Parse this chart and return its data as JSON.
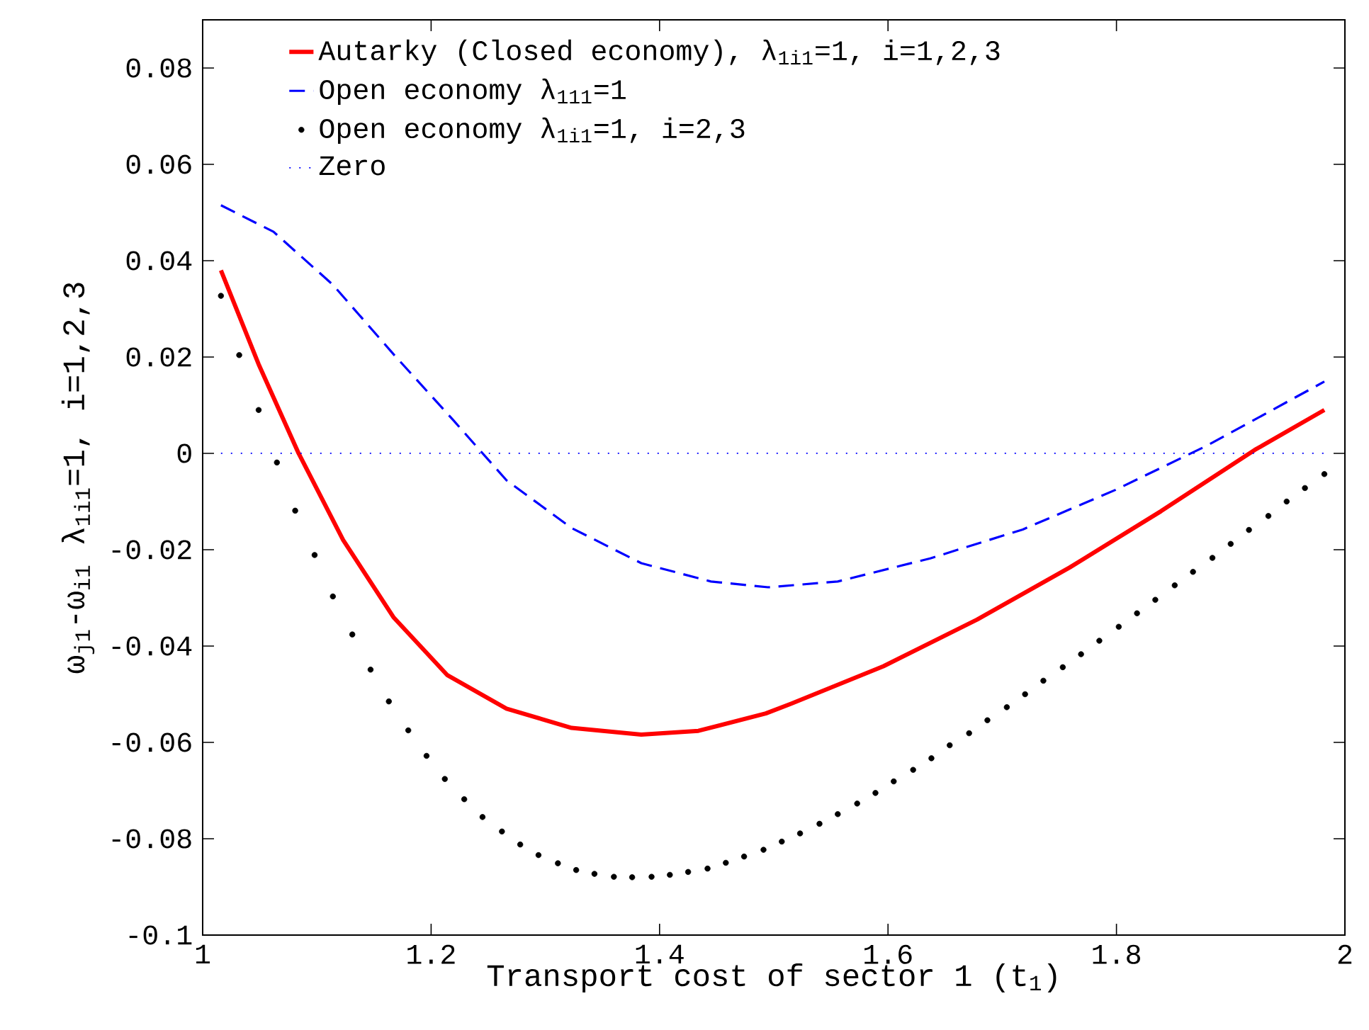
{
  "chart_data": {
    "type": "line",
    "xlabel": "Transport cost of sector 1 (t$_{1}$)",
    "ylabel": "ω$_{j1}$-ω$_{i1}$  λ$_{1i1}$=1, i=1,2,3",
    "xlim": [
      1,
      2
    ],
    "ylim": [
      -0.1,
      0.09
    ],
    "xticks": [
      1,
      1.2,
      1.4,
      1.6,
      1.8,
      2
    ],
    "yticks": [
      -0.1,
      -0.08,
      -0.06,
      -0.04,
      -0.02,
      0,
      0.02,
      0.04,
      0.06,
      0.08
    ],
    "legend": "top left",
    "series": [
      {
        "name": "Autarky (Closed economy), λ$_{1i1}$=1, i=1,2,3",
        "type": "line",
        "color": "#ff0000",
        "line_style": "solid",
        "marker": "none",
        "x": [
          1.016,
          1.049,
          1.084,
          1.123,
          1.167,
          1.214,
          1.266,
          1.323,
          1.384,
          1.434,
          1.493,
          1.515,
          1.596,
          1.678,
          1.759,
          1.839,
          1.921,
          1.982
        ],
        "values": [
          0.038,
          0.0185,
          0.0,
          -0.018,
          -0.034,
          -0.046,
          -0.053,
          -0.057,
          -0.0584,
          -0.0576,
          -0.054,
          -0.052,
          -0.0442,
          -0.0345,
          -0.0237,
          -0.012,
          0.0007,
          0.009
        ]
      },
      {
        "name": "Open economy λ$_{111}$=1",
        "type": "line",
        "color": "#0000ff",
        "line_style": "dashed",
        "marker": "none",
        "x": [
          1.016,
          1.062,
          1.114,
          1.167,
          1.219,
          1.266,
          1.323,
          1.384,
          1.445,
          1.495,
          1.556,
          1.637,
          1.718,
          1.799,
          1.88,
          1.982
        ],
        "values": [
          0.0515,
          0.046,
          0.035,
          0.0206,
          0.007,
          -0.0056,
          -0.0155,
          -0.0228,
          -0.0266,
          -0.0278,
          -0.0266,
          -0.0218,
          -0.0158,
          -0.0076,
          0.0017,
          0.0149
        ]
      },
      {
        "name": "Open economy λ$_{1i1}$=1, i=2,3",
        "type": "scatter",
        "color": "#000000",
        "marker": "circle",
        "x": [
          1.016,
          1.032,
          1.049,
          1.065,
          1.081,
          1.098,
          1.114,
          1.131,
          1.147,
          1.163,
          1.18,
          1.196,
          1.212,
          1.229,
          1.245,
          1.262,
          1.278,
          1.294,
          1.311,
          1.327,
          1.343,
          1.36,
          1.376,
          1.393,
          1.409,
          1.425,
          1.442,
          1.458,
          1.474,
          1.491,
          1.507,
          1.523,
          1.54,
          1.556,
          1.573,
          1.589,
          1.605,
          1.622,
          1.638,
          1.654,
          1.671,
          1.687,
          1.704,
          1.72,
          1.736,
          1.753,
          1.769,
          1.785,
          1.802,
          1.818,
          1.834,
          1.851,
          1.867,
          1.884,
          1.9,
          1.916,
          1.933,
          1.949,
          1.965,
          1.982
        ],
        "values": [
          0.0327,
          0.0204,
          0.009,
          -0.0019,
          -0.0119,
          -0.0211,
          -0.0297,
          -0.0376,
          -0.0449,
          -0.0515,
          -0.0575,
          -0.0628,
          -0.0676,
          -0.0718,
          -0.0755,
          -0.0785,
          -0.0812,
          -0.0834,
          -0.0851,
          -0.0865,
          -0.0873,
          -0.0879,
          -0.088,
          -0.0879,
          -0.0875,
          -0.0869,
          -0.0862,
          -0.085,
          -0.0837,
          -0.0823,
          -0.0806,
          -0.0789,
          -0.0769,
          -0.0749,
          -0.0727,
          -0.0705,
          -0.0681,
          -0.0657,
          -0.0633,
          -0.0606,
          -0.0581,
          -0.0554,
          -0.0527,
          -0.05,
          -0.0472,
          -0.0444,
          -0.0417,
          -0.0389,
          -0.036,
          -0.0332,
          -0.0304,
          -0.0274,
          -0.0246,
          -0.0217,
          -0.0188,
          -0.0159,
          -0.013,
          -0.01,
          -0.0072,
          -0.0043
        ]
      },
      {
        "name": "Zero",
        "type": "line",
        "color": "#0000ff",
        "line_style": "dotted",
        "marker": "none",
        "x": [
          1.016,
          1.982
        ],
        "values": [
          0,
          0
        ]
      }
    ]
  }
}
